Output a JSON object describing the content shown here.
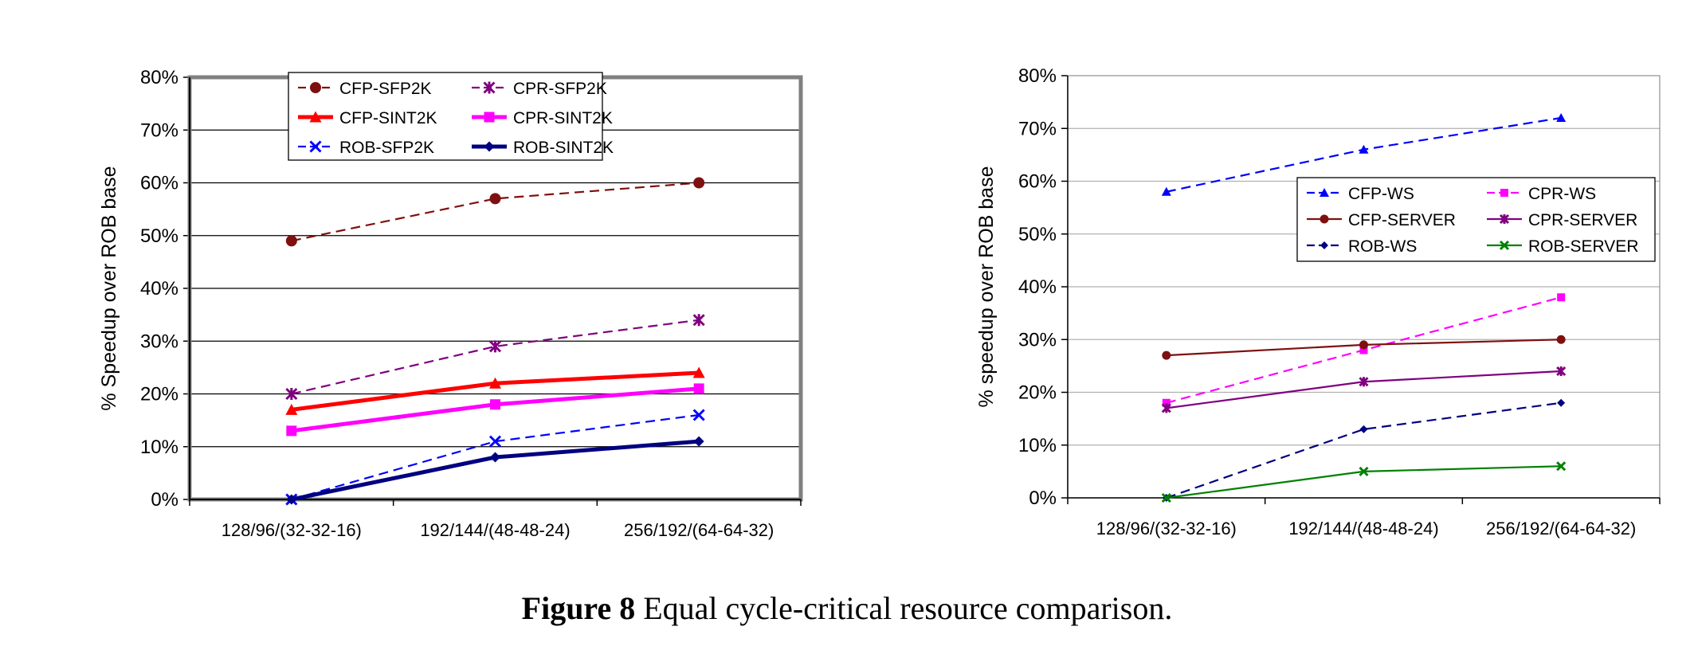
{
  "caption": {
    "label": "Figure 8",
    "text": " Equal cycle-critical resource comparison."
  },
  "chart_data": [
    {
      "type": "line",
      "title": "",
      "xlabel": "",
      "ylabel": "% Speedup over ROB base",
      "categories": [
        "128/96/(32-32-16)",
        "192/144/(48-48-24)",
        "256/192/(64-64-32)"
      ],
      "ylim": [
        0,
        80
      ],
      "yticks": [
        "0%",
        "10%",
        "20%",
        "30%",
        "40%",
        "50%",
        "60%",
        "70%",
        "80%"
      ],
      "grid": true,
      "legend": "top-center",
      "series": [
        {
          "name": "CFP-SFP2K",
          "values": [
            49,
            57,
            60
          ],
          "color": "#7f1010",
          "dash": true,
          "thick": false,
          "marker": "circle"
        },
        {
          "name": "CPR-SFP2K",
          "values": [
            20,
            29,
            34
          ],
          "color": "#800080",
          "dash": true,
          "thick": false,
          "marker": "xstar"
        },
        {
          "name": "CFP-SINT2K",
          "values": [
            17,
            22,
            24
          ],
          "color": "#ff0000",
          "dash": false,
          "thick": true,
          "marker": "triangle"
        },
        {
          "name": "CPR-SINT2K",
          "values": [
            13,
            18,
            21
          ],
          "color": "#ff00ff",
          "dash": false,
          "thick": true,
          "marker": "square"
        },
        {
          "name": "ROB-SFP2K",
          "values": [
            0,
            11,
            16
          ],
          "color": "#0000ff",
          "dash": true,
          "thick": false,
          "marker": "x"
        },
        {
          "name": "ROB-SINT2K",
          "values": [
            0,
            8,
            11
          ],
          "color": "#000080",
          "dash": false,
          "thick": true,
          "marker": "diamond"
        }
      ]
    },
    {
      "type": "line",
      "title": "",
      "xlabel": "",
      "ylabel": "% speedup over ROB base",
      "categories": [
        "128/96/(32-32-16)",
        "192/144/(48-48-24)",
        "256/192/(64-64-32)"
      ],
      "ylim": [
        0,
        80
      ],
      "yticks": [
        "0%",
        "10%",
        "20%",
        "30%",
        "40%",
        "50%",
        "60%",
        "70%",
        "80%"
      ],
      "grid": true,
      "legend": "center-right",
      "series": [
        {
          "name": "CFP-WS",
          "values": [
            58,
            66,
            72
          ],
          "color": "#0000ff",
          "dash": true,
          "thick": false,
          "marker": "triangle"
        },
        {
          "name": "CPR-WS",
          "values": [
            18,
            28,
            38
          ],
          "color": "#ff00ff",
          "dash": true,
          "thick": false,
          "marker": "square"
        },
        {
          "name": "CFP-SERVER",
          "values": [
            27,
            29,
            30
          ],
          "color": "#7f1010",
          "dash": false,
          "thick": false,
          "marker": "circle"
        },
        {
          "name": "CPR-SERVER",
          "values": [
            17,
            22,
            24
          ],
          "color": "#800080",
          "dash": false,
          "thick": false,
          "marker": "xstar"
        },
        {
          "name": "ROB-WS",
          "values": [
            0,
            13,
            18
          ],
          "color": "#000080",
          "dash": true,
          "thick": false,
          "marker": "diamond"
        },
        {
          "name": "ROB-SERVER",
          "values": [
            0,
            5,
            6
          ],
          "color": "#008000",
          "dash": false,
          "thick": false,
          "marker": "x"
        }
      ]
    }
  ]
}
